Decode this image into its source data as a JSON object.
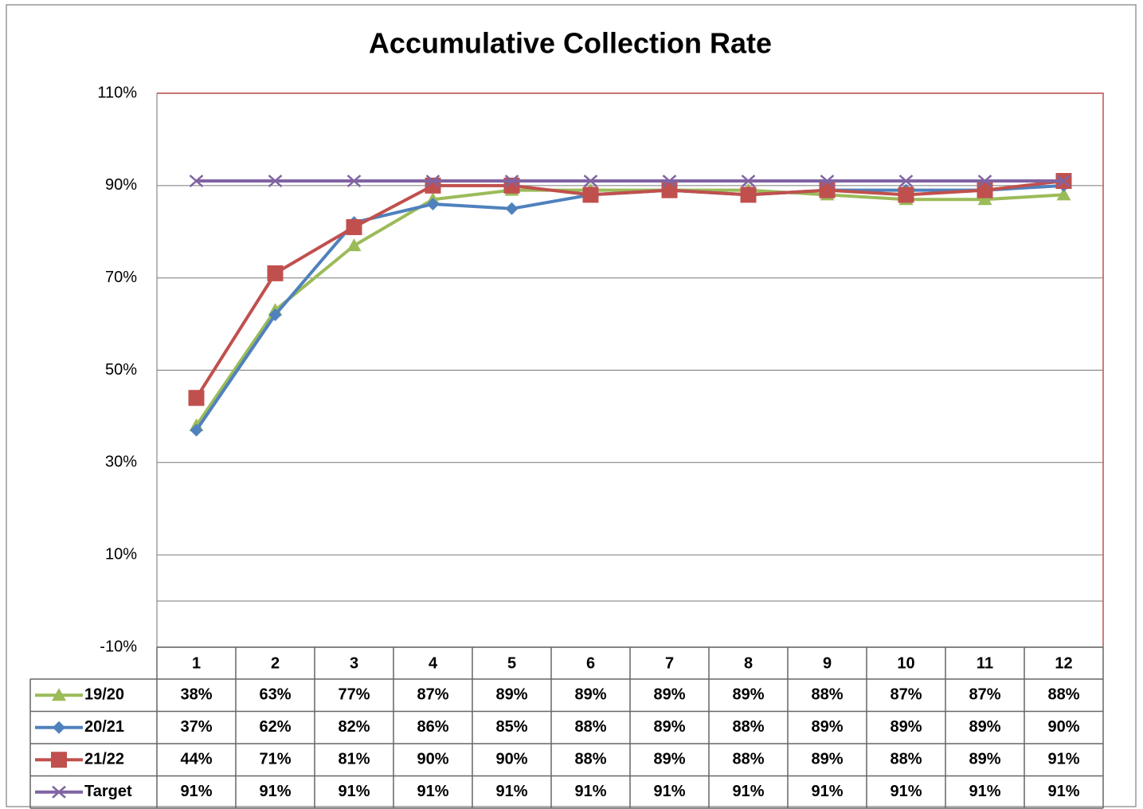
{
  "chart_data": {
    "type": "line",
    "title": "Accumulative Collection Rate",
    "categories": [
      "1",
      "2",
      "3",
      "4",
      "5",
      "6",
      "7",
      "8",
      "9",
      "10",
      "11",
      "12"
    ],
    "ylim": [
      -10,
      110
    ],
    "yticks": [
      {
        "value": -10,
        "label": "-10%"
      },
      {
        "value": 10,
        "label": "10%"
      },
      {
        "value": 30,
        "label": "30%"
      },
      {
        "value": 50,
        "label": "50%"
      },
      {
        "value": 70,
        "label": "70%"
      },
      {
        "value": 90,
        "label": "90%"
      },
      {
        "value": 110,
        "label": "110%"
      }
    ],
    "grid": true,
    "series": [
      {
        "name": "19/20",
        "color": "#9bbb59",
        "marker": "triangle",
        "values": [
          38,
          63,
          77,
          87,
          89,
          89,
          89,
          89,
          88,
          87,
          87,
          88
        ],
        "value_labels": [
          "38%",
          "63%",
          "77%",
          "87%",
          "89%",
          "89%",
          "89%",
          "89%",
          "88%",
          "87%",
          "87%",
          "88%"
        ]
      },
      {
        "name": "20/21",
        "color": "#4f81bd",
        "marker": "diamond",
        "values": [
          37,
          62,
          82,
          86,
          85,
          88,
          89,
          88,
          89,
          89,
          89,
          90
        ],
        "value_labels": [
          "37%",
          "62%",
          "82%",
          "86%",
          "85%",
          "88%",
          "89%",
          "88%",
          "89%",
          "89%",
          "89%",
          "90%"
        ]
      },
      {
        "name": "21/22",
        "color": "#c0504d",
        "marker": "square",
        "values": [
          44,
          71,
          81,
          90,
          90,
          88,
          89,
          88,
          89,
          88,
          89,
          91
        ],
        "value_labels": [
          "44%",
          "71%",
          "81%",
          "90%",
          "90%",
          "88%",
          "89%",
          "88%",
          "89%",
          "88%",
          "89%",
          "91%"
        ]
      },
      {
        "name": "Target",
        "color": "#8064a2",
        "marker": "x",
        "values": [
          91,
          91,
          91,
          91,
          91,
          91,
          91,
          91,
          91,
          91,
          91,
          91
        ],
        "value_labels": [
          "91%",
          "91%",
          "91%",
          "91%",
          "91%",
          "91%",
          "91%",
          "91%",
          "91%",
          "91%",
          "91%",
          "91%"
        ]
      }
    ]
  }
}
